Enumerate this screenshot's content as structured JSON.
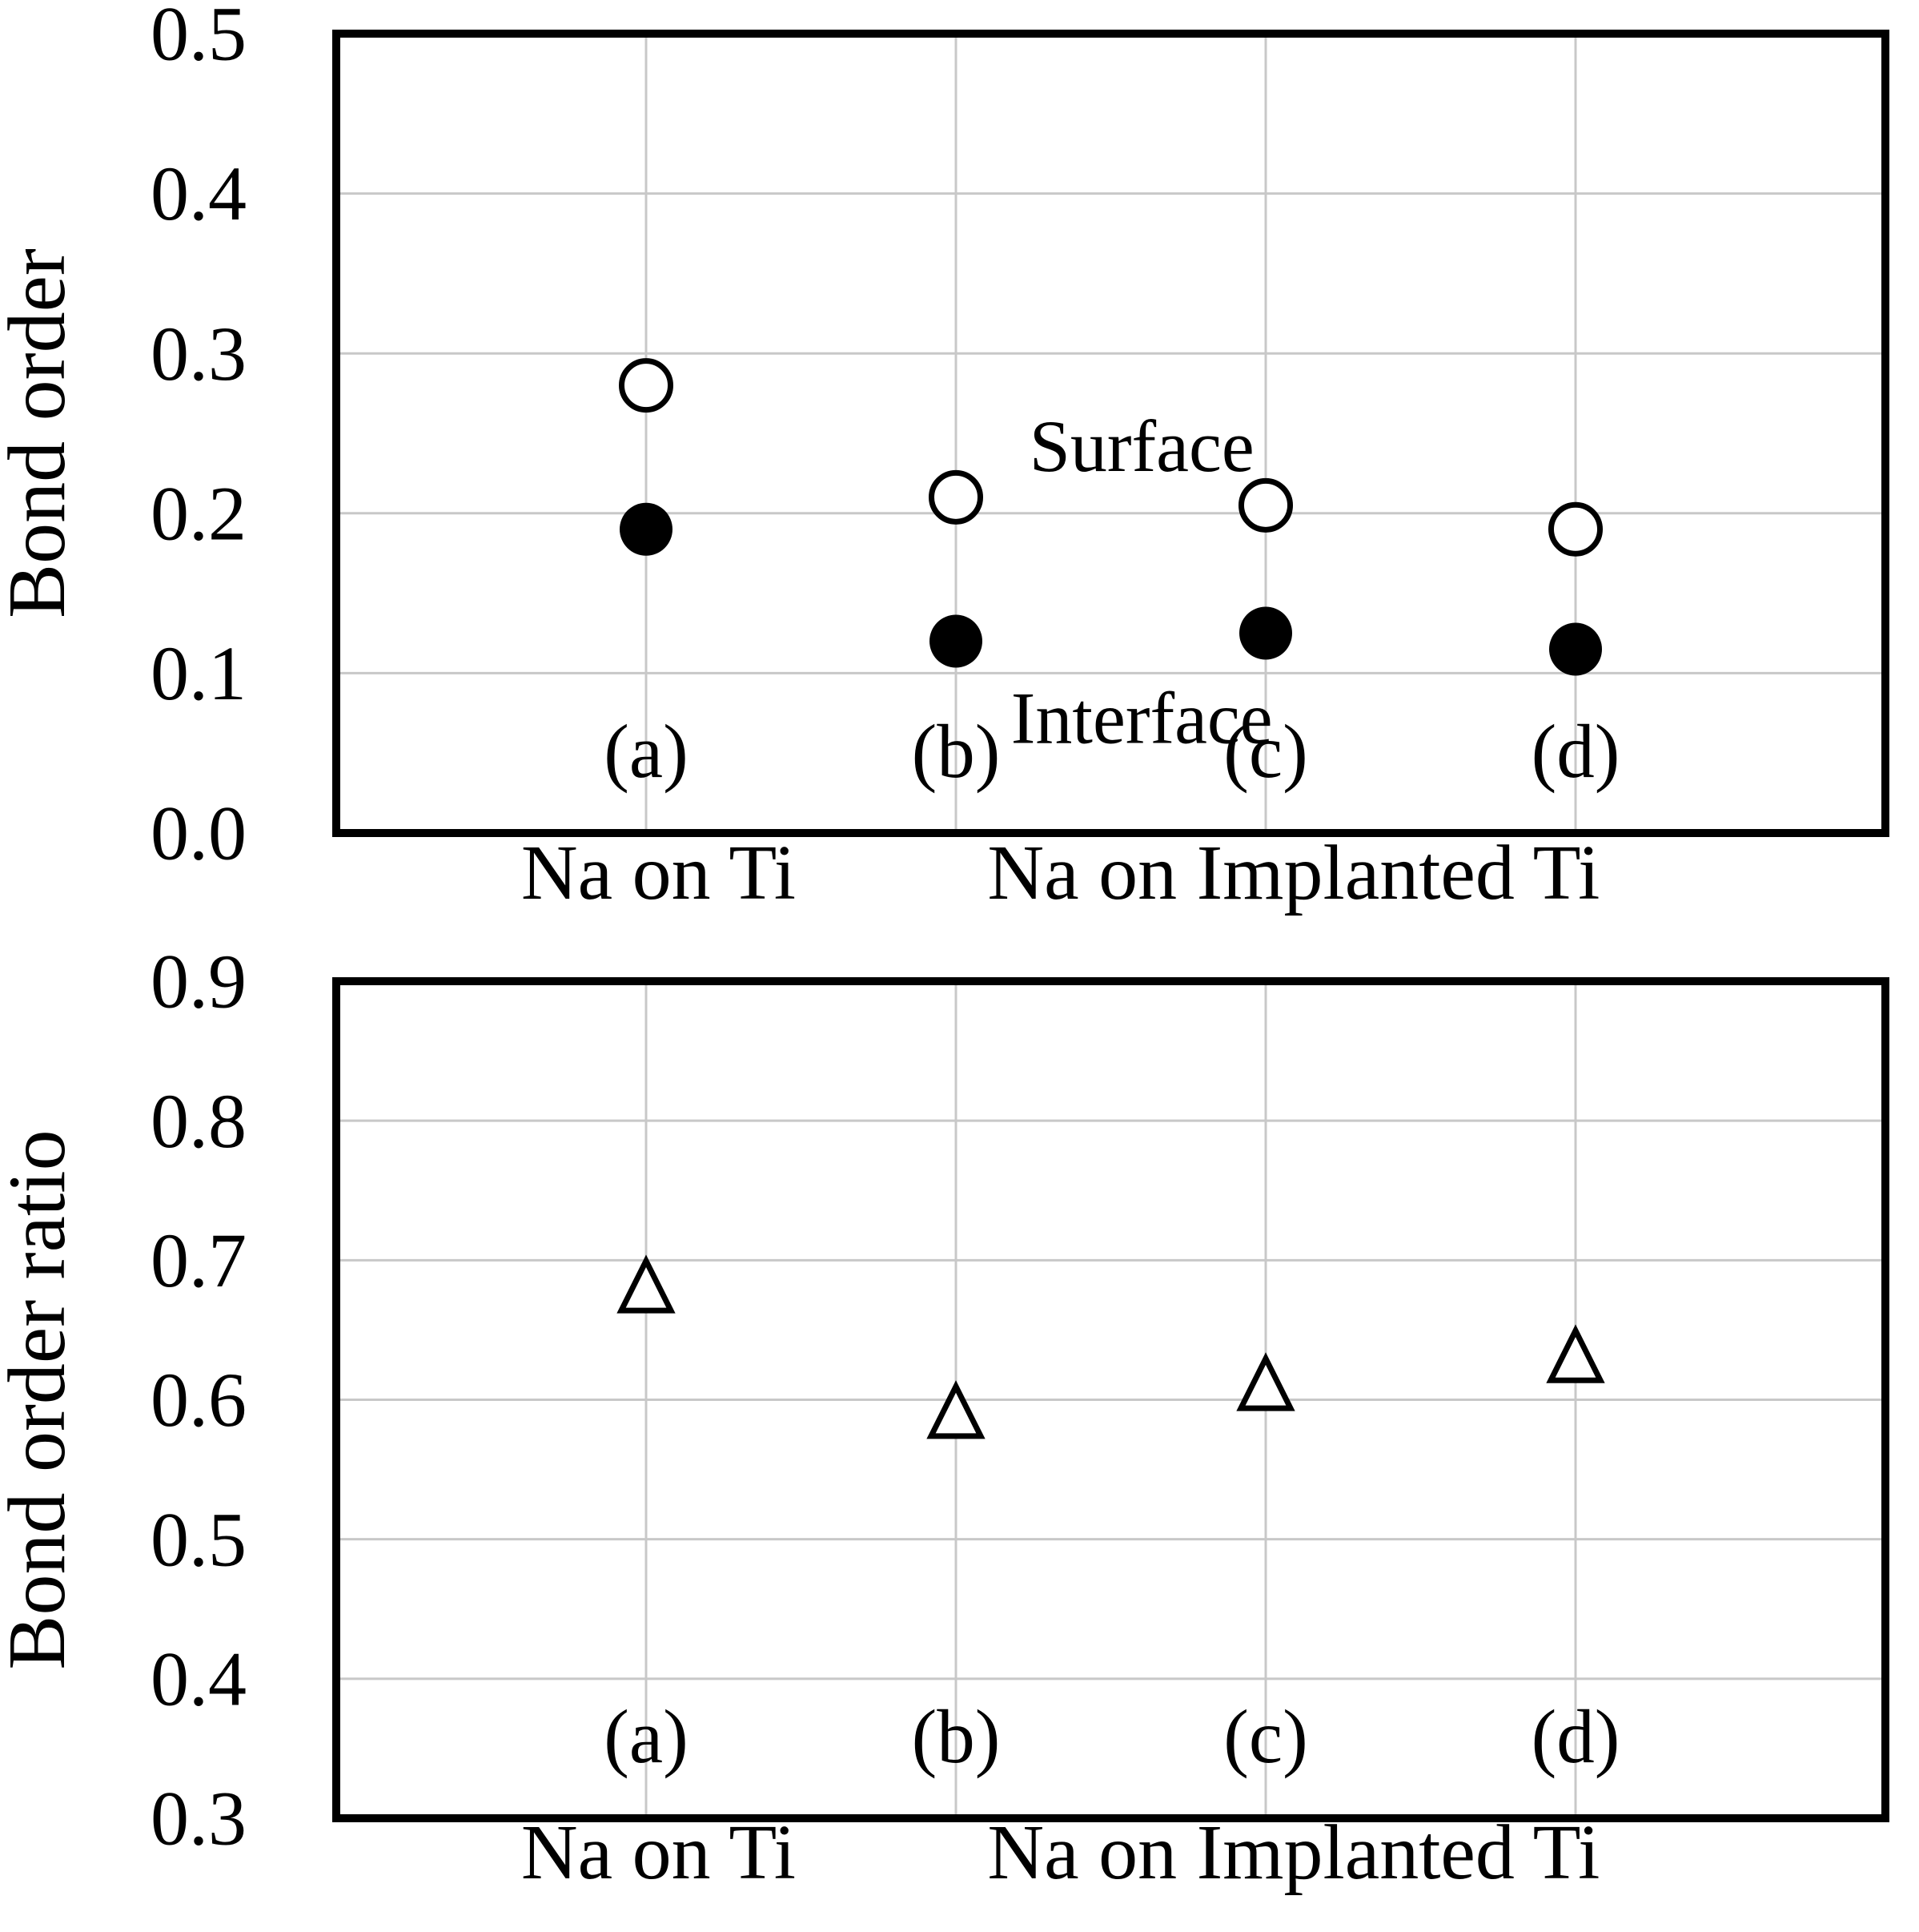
{
  "figure": {
    "background": "#ffffff",
    "text_color": "#000000",
    "gridline_color": "#c8c8c8",
    "border_color": "#000000",
    "marker_color": "#000000"
  },
  "chart_data": [
    {
      "id": "bond-order",
      "type": "scatter",
      "title": "",
      "xlabel": "",
      "ylabel": "Bond order",
      "ylim": [
        0.0,
        0.5
      ],
      "ytick_step": 0.1,
      "ytick_decimals": 1,
      "ytick_labels": [
        "0.0",
        "0.1",
        "0.2",
        "0.3",
        "0.4",
        "0.5"
      ],
      "xlim": [
        0,
        5
      ],
      "grid": true,
      "legend_position": "in-plot-annotations",
      "categories": [
        "(a)",
        "(b)",
        "(c)",
        "(d)"
      ],
      "category_x": [
        1,
        2,
        3,
        4
      ],
      "group_labels": [
        {
          "label": "Na on Ti",
          "x": 1.04
        },
        {
          "label": "Na on Implanted Ti",
          "x": 3.09
        }
      ],
      "series": [
        {
          "name": "Surface",
          "marker": "open-circle",
          "values": [
            0.28,
            0.21,
            0.205,
            0.19
          ]
        },
        {
          "name": "Interface",
          "marker": "filled-circle",
          "values": [
            0.19,
            0.12,
            0.125,
            0.115
          ]
        }
      ],
      "annotations": [
        {
          "text": "Surface",
          "x": 2.6,
          "y": 0.242
        },
        {
          "text": "Interface",
          "x": 2.6,
          "y": 0.072
        }
      ]
    },
    {
      "id": "bond-order-ratio",
      "type": "scatter",
      "title": "",
      "xlabel": "",
      "ylabel": "Bond order ratio",
      "ylim": [
        0.3,
        0.9
      ],
      "ytick_step": 0.1,
      "ytick_decimals": 1,
      "ytick_labels": [
        "0.3",
        "0.4",
        "0.5",
        "0.6",
        "0.7",
        "0.8",
        "0.9"
      ],
      "xlim": [
        0,
        5
      ],
      "grid": true,
      "legend_position": "none",
      "categories": [
        "(a)",
        "(b)",
        "(c)",
        "(d)"
      ],
      "category_x": [
        1,
        2,
        3,
        4
      ],
      "group_labels": [
        {
          "label": "Na on Ti",
          "x": 1.04
        },
        {
          "label": "Na on Implanted Ti",
          "x": 3.09
        }
      ],
      "series": [
        {
          "name": "Bond order ratio",
          "marker": "open-triangle",
          "values": [
            0.68,
            0.59,
            0.61,
            0.63
          ]
        }
      ],
      "annotations": []
    }
  ]
}
